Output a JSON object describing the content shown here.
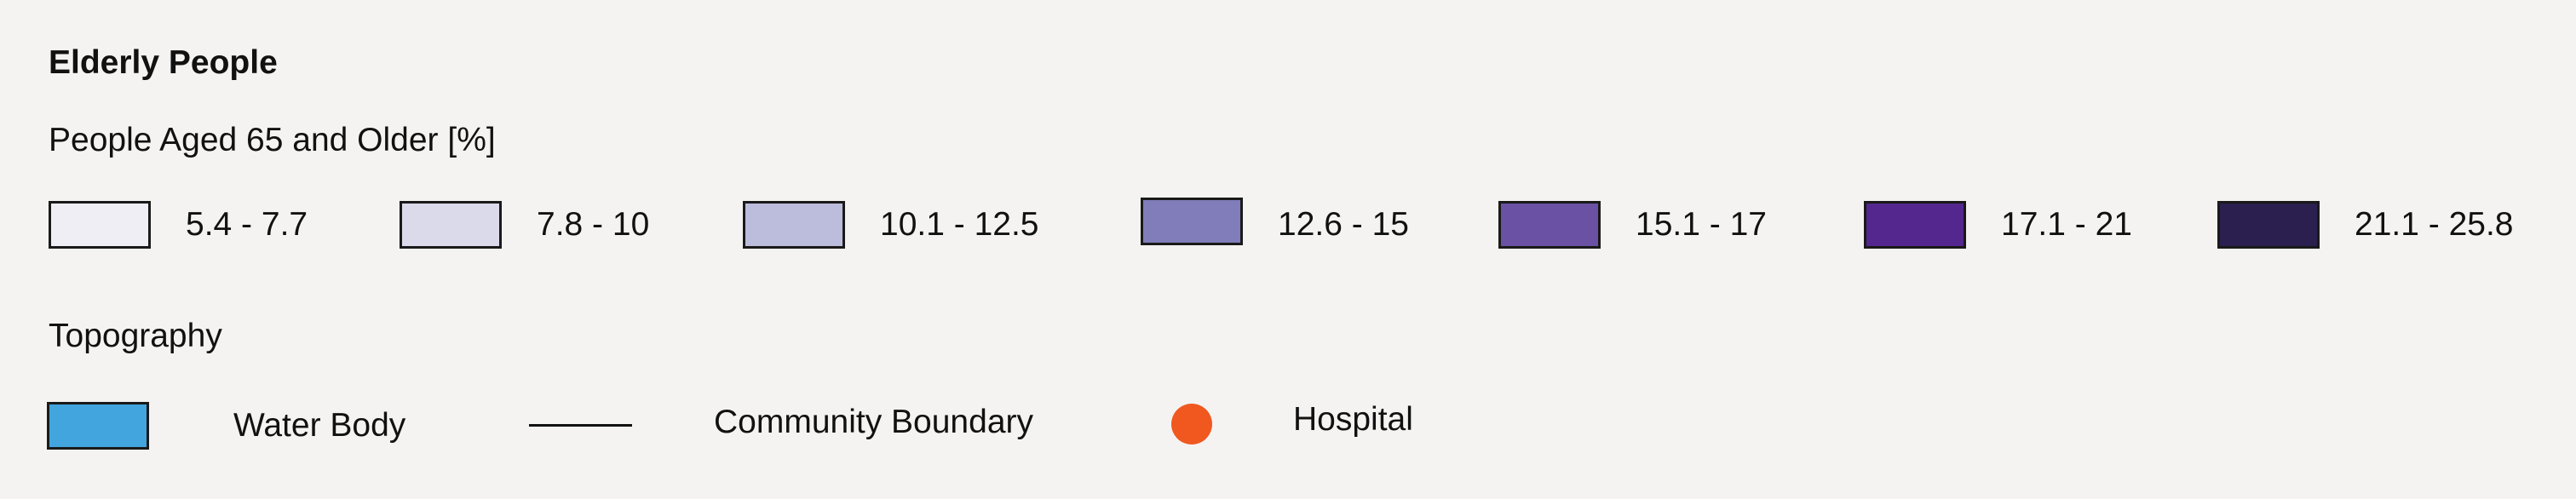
{
  "legend": {
    "title": "Elderly People",
    "subtitle": "People Aged 65 and Older [%]",
    "classes": [
      {
        "label": "5.4 - 7.7",
        "color": "#efeef4"
      },
      {
        "label": "7.8 - 10",
        "color": "#dadaeb"
      },
      {
        "label": "10.1 - 12.5",
        "color": "#bcbddc"
      },
      {
        "label": "12.6 - 15",
        "color": "#807dba"
      },
      {
        "label": "15.1 - 17",
        "color": "#6a51a3"
      },
      {
        "label": "17.1 - 21",
        "color": "#54278f"
      },
      {
        "label": "21.1 - 25.8",
        "color": "#2b1f4f"
      }
    ],
    "topography": {
      "title": "Topography",
      "items": [
        {
          "label": "Water Body",
          "symbol": "rectangle",
          "color": "#42a5de"
        },
        {
          "label": "Community Boundary",
          "symbol": "line",
          "color": "#111111"
        },
        {
          "label": "Hospital",
          "symbol": "circle",
          "color": "#f0581f"
        }
      ]
    }
  }
}
